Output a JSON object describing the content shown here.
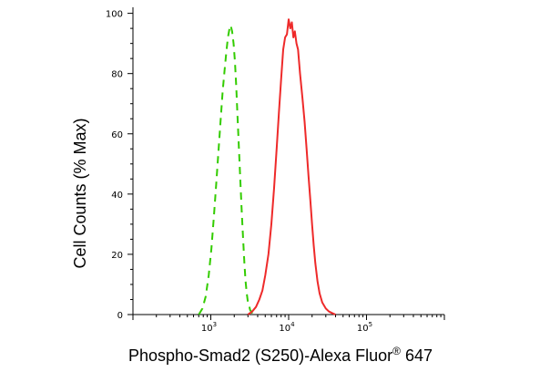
{
  "chart_data": {
    "type": "line",
    "xlabel": "Phospho-Smad2 (S250)-Alexa Fluor",
    "xlabel_registered": "®",
    "xlabel_suffix": " 647",
    "ylabel": "Cell Counts (% Max)",
    "xscale": "log",
    "xlim": [
      100,
      1000000
    ],
    "ylim": [
      0,
      102
    ],
    "x_ticks": [
      {
        "base": "10",
        "exp": "3",
        "value": 1000
      },
      {
        "base": "10",
        "exp": "4",
        "value": 10000
      },
      {
        "base": "10",
        "exp": "5",
        "value": 100000
      }
    ],
    "y_ticks": [
      "0",
      "20",
      "40",
      "60",
      "80",
      "100"
    ],
    "legend": "none",
    "grid": false,
    "series": [
      {
        "color": "#33cc00",
        "style": "dashed",
        "x": [
          700,
          780,
          860,
          940,
          1020,
          1100,
          1180,
          1260,
          1340,
          1420,
          1500,
          1580,
          1660,
          1740,
          1800,
          1880,
          1960,
          2040,
          2120,
          2200,
          2300,
          2400,
          2500,
          2600,
          2700,
          2800,
          2900,
          3000,
          3100,
          3200,
          3300,
          3400,
          3500
        ],
        "y": [
          0,
          2,
          6,
          13,
          22,
          33,
          44,
          55,
          65,
          74,
          81,
          87,
          92,
          95,
          96,
          94,
          90,
          84,
          76,
          66,
          55,
          44,
          34,
          25,
          17,
          11,
          7,
          4,
          3,
          1.5,
          1,
          0.5,
          0
        ]
      },
      {
        "color": "#ee2a2a",
        "style": "solid",
        "x": [
          3000,
          3400,
          3800,
          4200,
          4600,
          5000,
          5500,
          6000,
          6500,
          7000,
          7500,
          8000,
          8500,
          9000,
          9500,
          10000,
          10500,
          11000,
          11500,
          12000,
          12600,
          13200,
          14000,
          15000,
          16000,
          17000,
          18000,
          19000,
          20000,
          21000,
          22000,
          23500,
          25000,
          27000,
          30000,
          33000,
          36000,
          40000
        ],
        "y": [
          0,
          1,
          2.5,
          5,
          8,
          13,
          20,
          30,
          42,
          55,
          67,
          78,
          88,
          92,
          93,
          98,
          95,
          97,
          92,
          94,
          90,
          88,
          80,
          72,
          64,
          55,
          46,
          38,
          30,
          23,
          17,
          11,
          7,
          4,
          2,
          1,
          0.5,
          0
        ]
      }
    ]
  }
}
